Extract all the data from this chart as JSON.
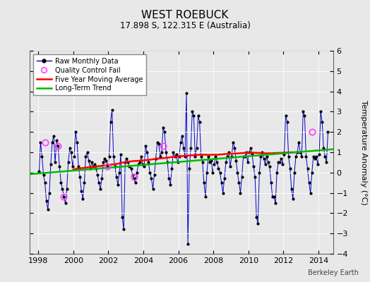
{
  "title": "WEST ROEBUCK",
  "subtitle": "17.898 S, 122.315 E (Australia)",
  "ylabel": "Temperature Anomaly (°C)",
  "watermark": "Berkeley Earth",
  "xlim": [
    1997.5,
    2014.83
  ],
  "ylim": [
    -4,
    6
  ],
  "yticks": [
    -4,
    -3,
    -2,
    -1,
    0,
    1,
    2,
    3,
    4,
    5,
    6
  ],
  "xticks": [
    1998,
    2000,
    2002,
    2004,
    2006,
    2008,
    2010,
    2012,
    2014
  ],
  "fig_bg_color": "#e8e8e8",
  "plot_bg_color": "#e8e8e8",
  "raw_color": "#0000cc",
  "ma_color": "#ff0000",
  "trend_color": "#00bb00",
  "qc_color": "#ff44ff",
  "raw_monthly_x": [
    1998.042,
    1998.125,
    1998.208,
    1998.292,
    1998.375,
    1998.458,
    1998.542,
    1998.625,
    1998.708,
    1998.792,
    1998.875,
    1998.958,
    1999.042,
    1999.125,
    1999.208,
    1999.292,
    1999.375,
    1999.458,
    1999.542,
    1999.625,
    1999.708,
    1999.792,
    1999.875,
    1999.958,
    2000.042,
    2000.125,
    2000.208,
    2000.292,
    2000.375,
    2000.458,
    2000.542,
    2000.625,
    2000.708,
    2000.792,
    2000.875,
    2000.958,
    2001.042,
    2001.125,
    2001.208,
    2001.292,
    2001.375,
    2001.458,
    2001.542,
    2001.625,
    2001.708,
    2001.792,
    2001.875,
    2001.958,
    2002.042,
    2002.125,
    2002.208,
    2002.292,
    2002.375,
    2002.458,
    2002.542,
    2002.625,
    2002.708,
    2002.792,
    2002.875,
    2002.958,
    2003.042,
    2003.125,
    2003.208,
    2003.292,
    2003.375,
    2003.458,
    2003.542,
    2003.625,
    2003.708,
    2003.792,
    2003.875,
    2003.958,
    2004.042,
    2004.125,
    2004.208,
    2004.292,
    2004.375,
    2004.458,
    2004.542,
    2004.625,
    2004.708,
    2004.792,
    2004.875,
    2004.958,
    2005.042,
    2005.125,
    2005.208,
    2005.292,
    2005.375,
    2005.458,
    2005.542,
    2005.625,
    2005.708,
    2005.792,
    2005.875,
    2005.958,
    2006.042,
    2006.125,
    2006.208,
    2006.292,
    2006.375,
    2006.458,
    2006.542,
    2006.625,
    2006.708,
    2006.792,
    2006.875,
    2006.958,
    2007.042,
    2007.125,
    2007.208,
    2007.292,
    2007.375,
    2007.458,
    2007.542,
    2007.625,
    2007.708,
    2007.792,
    2007.875,
    2007.958,
    2008.042,
    2008.125,
    2008.208,
    2008.292,
    2008.375,
    2008.458,
    2008.542,
    2008.625,
    2008.708,
    2008.792,
    2008.875,
    2008.958,
    2009.042,
    2009.125,
    2009.208,
    2009.292,
    2009.375,
    2009.458,
    2009.542,
    2009.625,
    2009.708,
    2009.792,
    2009.875,
    2009.958,
    2010.042,
    2010.125,
    2010.208,
    2010.292,
    2010.375,
    2010.458,
    2010.542,
    2010.625,
    2010.708,
    2010.792,
    2010.875,
    2010.958,
    2011.042,
    2011.125,
    2011.208,
    2011.292,
    2011.375,
    2011.458,
    2011.542,
    2011.625,
    2011.708,
    2011.792,
    2011.875,
    2011.958,
    2012.042,
    2012.125,
    2012.208,
    2012.292,
    2012.375,
    2012.458,
    2012.542,
    2012.625,
    2012.708,
    2012.792,
    2012.875,
    2012.958,
    2013.042,
    2013.125,
    2013.208,
    2013.292,
    2013.375,
    2013.458,
    2013.542,
    2013.625,
    2013.708,
    2013.792,
    2013.875,
    2013.958,
    2014.042,
    2014.125,
    2014.208,
    2014.292,
    2014.375,
    2014.458,
    2014.542
  ],
  "raw_monthly_y": [
    0.05,
    1.5,
    0.8,
    -0.1,
    -0.5,
    -1.4,
    -1.8,
    -1.0,
    0.4,
    1.5,
    1.8,
    0.5,
    1.6,
    1.3,
    0.3,
    -0.5,
    -0.8,
    -1.2,
    -1.5,
    -0.8,
    0.5,
    1.2,
    1.0,
    0.3,
    0.8,
    2.0,
    1.5,
    0.3,
    -0.2,
    -0.9,
    -1.3,
    -0.5,
    0.8,
    1.0,
    0.6,
    0.2,
    0.5,
    0.3,
    0.4,
    0.2,
    -0.1,
    -0.5,
    -0.8,
    -0.3,
    0.5,
    0.7,
    0.6,
    0.3,
    0.8,
    2.5,
    3.1,
    0.8,
    0.3,
    -0.2,
    -0.6,
    0.0,
    0.9,
    -2.2,
    -2.8,
    0.5,
    0.7,
    0.5,
    0.3,
    0.2,
    -0.1,
    -0.3,
    -0.5,
    0.0,
    0.4,
    0.5,
    0.8,
    0.4,
    0.3,
    1.3,
    1.0,
    0.5,
    0.0,
    -0.3,
    -0.8,
    -0.1,
    0.7,
    1.5,
    1.4,
    0.8,
    1.0,
    2.2,
    2.0,
    1.0,
    0.5,
    -0.3,
    -0.6,
    0.2,
    1.0,
    0.8,
    0.9,
    0.5,
    0.8,
    1.5,
    1.8,
    1.2,
    0.8,
    3.9,
    -3.5,
    0.2,
    1.2,
    3.0,
    2.8,
    0.8,
    1.2,
    2.8,
    2.5,
    0.8,
    0.5,
    -0.5,
    -1.2,
    0.0,
    0.8,
    0.5,
    0.6,
    0.0,
    0.4,
    0.8,
    0.5,
    0.2,
    0.0,
    -0.5,
    -1.0,
    -0.3,
    0.5,
    0.8,
    1.0,
    0.3,
    0.8,
    1.5,
    1.2,
    0.6,
    0.0,
    -0.5,
    -1.0,
    -0.2,
    0.8,
    0.8,
    1.0,
    0.5,
    1.0,
    1.2,
    0.9,
    0.3,
    -0.2,
    -2.2,
    -2.5,
    0.0,
    0.8,
    1.0,
    0.7,
    0.4,
    0.8,
    0.5,
    0.3,
    -0.5,
    -1.2,
    -1.2,
    -1.5,
    0.0,
    0.5,
    0.5,
    0.7,
    0.4,
    0.9,
    2.8,
    2.5,
    0.8,
    0.2,
    -0.8,
    -1.3,
    0.0,
    0.8,
    1.0,
    1.5,
    1.0,
    0.8,
    3.0,
    2.8,
    0.8,
    0.2,
    -0.5,
    -1.0,
    0.0,
    0.8,
    0.7,
    0.8,
    0.4,
    0.9,
    3.0,
    2.5,
    1.2,
    0.8,
    0.5,
    2.0
  ],
  "qc_fail_x": [
    1998.375,
    1999.125,
    1999.458,
    2001.958,
    2003.458,
    2005.125,
    2013.625
  ],
  "qc_fail_y": [
    1.5,
    1.3,
    -1.2,
    0.3,
    -0.2,
    1.3,
    2.0
  ],
  "moving_avg_x": [
    2000.0,
    2000.25,
    2000.5,
    2000.75,
    2001.0,
    2001.25,
    2001.5,
    2001.75,
    2002.0,
    2002.25,
    2002.5,
    2002.75,
    2003.0,
    2003.25,
    2003.5,
    2003.75,
    2004.0,
    2004.25,
    2004.5,
    2004.75,
    2005.0,
    2005.25,
    2005.5,
    2005.75,
    2006.0,
    2006.25,
    2006.5,
    2006.75,
    2007.0,
    2007.25,
    2007.5,
    2007.75,
    2008.0,
    2008.25,
    2008.5,
    2008.75,
    2009.0,
    2009.25,
    2009.5,
    2009.75,
    2010.0,
    2010.25,
    2010.5,
    2010.75,
    2011.0,
    2011.25,
    2011.5,
    2011.75,
    2012.0,
    2012.25,
    2012.5,
    2012.75
  ],
  "moving_avg_y": [
    0.15,
    0.2,
    0.22,
    0.25,
    0.28,
    0.3,
    0.32,
    0.35,
    0.38,
    0.4,
    0.43,
    0.48,
    0.52,
    0.55,
    0.57,
    0.58,
    0.6,
    0.62,
    0.65,
    0.68,
    0.7,
    0.72,
    0.75,
    0.78,
    0.8,
    0.82,
    0.83,
    0.85,
    0.87,
    0.88,
    0.88,
    0.87,
    0.88,
    0.88,
    0.9,
    0.92,
    0.93,
    0.94,
    0.95,
    0.97,
    0.98,
    0.98,
    0.97,
    0.96,
    0.95,
    0.95,
    0.96,
    0.97,
    0.98,
    0.99,
    1.0,
    1.0
  ],
  "trend_x": [
    1997.5,
    2014.83
  ],
  "trend_y": [
    -0.08,
    1.15
  ]
}
